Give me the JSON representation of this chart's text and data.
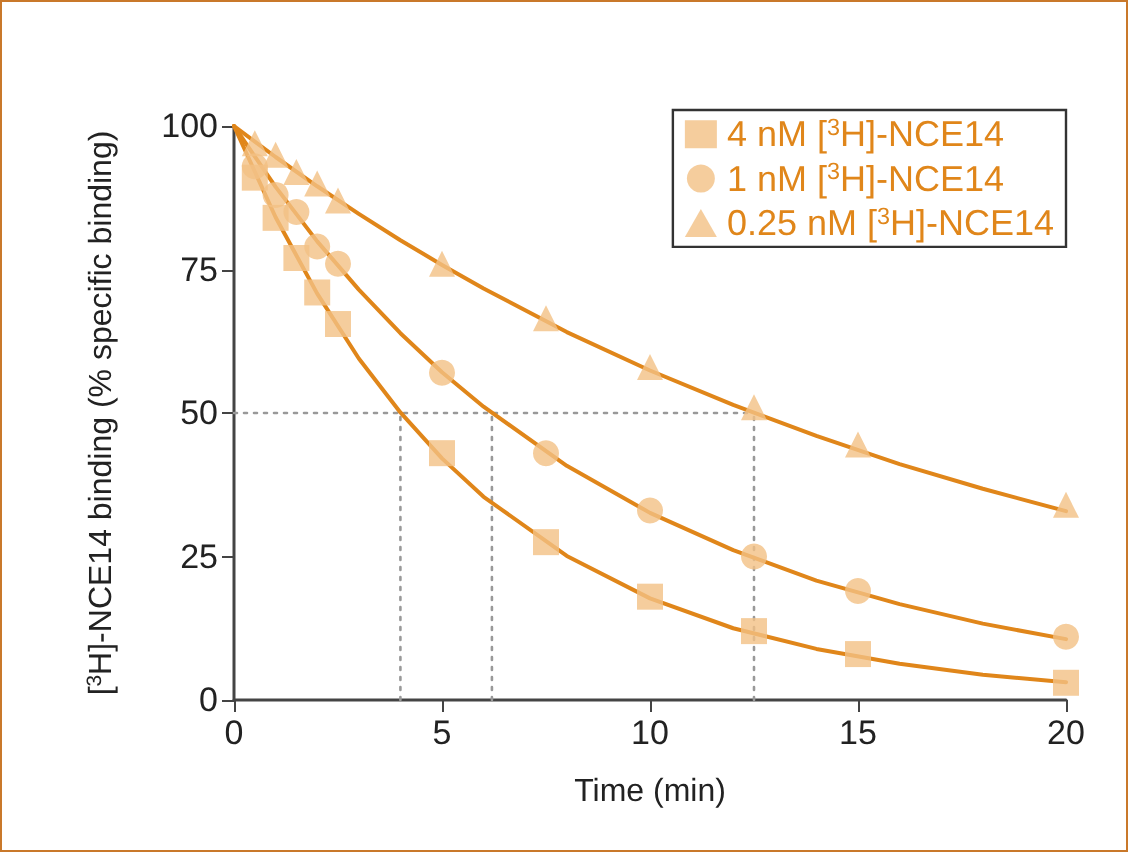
{
  "chart_data": {
    "type": "scatter",
    "xlabel": "Time (min)",
    "ylabel": "[$^{3}$H]-NCE14 binding (% specific binding)",
    "xlim": [
      0,
      20
    ],
    "xticks": [
      0,
      5,
      10,
      15,
      20
    ],
    "ylim": [
      0,
      100
    ],
    "yticks": [
      0,
      25,
      50,
      75,
      100
    ],
    "grid": false,
    "legend": "top right",
    "series": [
      {
        "name": "4 nM [$^{3}$H]-NCE14",
        "marker": "square",
        "color": "#f2c185",
        "x": [
          0.5,
          1,
          1.5,
          2,
          2.5,
          5,
          7.5,
          10,
          12.5,
          15,
          20
        ],
        "values": [
          91,
          84,
          77,
          71,
          65.5,
          43,
          27.5,
          18,
          12,
          8,
          3
        ]
      },
      {
        "name": "1 nM [$^{3}$H]-NCE14",
        "marker": "circle",
        "color": "#f2c185",
        "x": [
          0.5,
          1,
          1.5,
          2,
          2.5,
          5,
          7.5,
          10,
          12.5,
          15,
          20
        ],
        "values": [
          93,
          88,
          85,
          79,
          76,
          57,
          43,
          33,
          25,
          19,
          11
        ]
      },
      {
        "name": "0.25 nM [$^{3}$H]-NCE14",
        "marker": "triangle",
        "color": "#f2c185",
        "x": [
          0.5,
          1,
          1.5,
          2,
          2.5,
          5,
          7.5,
          10,
          12.5,
          15,
          20
        ],
        "values": [
          97,
          95,
          92,
          90,
          87,
          76,
          66.5,
          58,
          51,
          44.5,
          34
        ]
      },
      {
        "type": "line",
        "marker": "none",
        "line_style": "solid",
        "color": "#e0861a",
        "x": [
          0,
          1,
          2,
          3,
          4,
          5,
          6,
          8,
          10,
          12,
          14,
          16,
          18,
          20
        ],
        "values": [
          100,
          84.1,
          70.8,
          59.5,
          50.1,
          42.1,
          35.4,
          25.1,
          17.7,
          12.5,
          8.9,
          6.3,
          4.4,
          3.1
        ]
      },
      {
        "type": "line",
        "marker": "none",
        "line_style": "solid",
        "color": "#e0861a",
        "x": [
          0,
          1,
          2,
          3,
          4,
          5,
          6,
          8,
          10,
          12,
          14,
          16,
          18,
          20
        ],
        "values": [
          100,
          89.4,
          79.9,
          71.5,
          63.9,
          57.1,
          51.1,
          40.8,
          32.6,
          26.1,
          20.8,
          16.7,
          13.3,
          10.6
        ]
      },
      {
        "type": "line",
        "marker": "none",
        "line_style": "solid",
        "color": "#e0861a",
        "x": [
          0,
          1,
          2,
          3,
          4,
          5,
          6,
          8,
          10,
          12,
          14,
          16,
          18,
          20
        ],
        "values": [
          100,
          94.6,
          89.5,
          84.7,
          80.1,
          75.8,
          71.7,
          64.1,
          57.4,
          51.4,
          46.0,
          41.1,
          36.8,
          32.9
        ]
      },
      {
        "type": "line",
        "marker": "none",
        "line_style": "dotted",
        "color": "#999999",
        "x": [
          0,
          12.5
        ],
        "values": [
          50,
          50
        ]
      },
      {
        "type": "line",
        "marker": "none",
        "line_style": "dotted",
        "color": "#999999",
        "x": [
          4,
          4
        ],
        "values": [
          0,
          50
        ]
      },
      {
        "type": "line",
        "marker": "none",
        "line_style": "dotted",
        "color": "#999999",
        "x": [
          6.2,
          6.2
        ],
        "values": [
          0,
          50
        ]
      },
      {
        "type": "line",
        "marker": "none",
        "line_style": "dotted",
        "color": "#999999",
        "x": [
          12.5,
          12.5
        ],
        "values": [
          0,
          50
        ]
      }
    ]
  }
}
